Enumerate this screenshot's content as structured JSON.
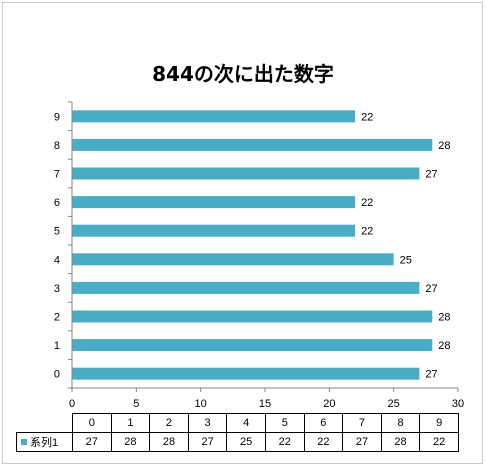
{
  "chart_data": {
    "type": "bar",
    "orientation": "horizontal",
    "title": "844の次に出た数字",
    "categories": [
      "0",
      "1",
      "2",
      "3",
      "4",
      "5",
      "6",
      "7",
      "8",
      "9"
    ],
    "series": [
      {
        "name": "系列1",
        "values": [
          27,
          28,
          28,
          27,
          25,
          22,
          22,
          27,
          28,
          22
        ],
        "color": "#4bacc6"
      }
    ],
    "xlim": [
      0,
      30
    ],
    "x_ticks": [
      0,
      5,
      10,
      15,
      20,
      25,
      30
    ],
    "grid": false,
    "data_labels": true,
    "data_table": true
  }
}
